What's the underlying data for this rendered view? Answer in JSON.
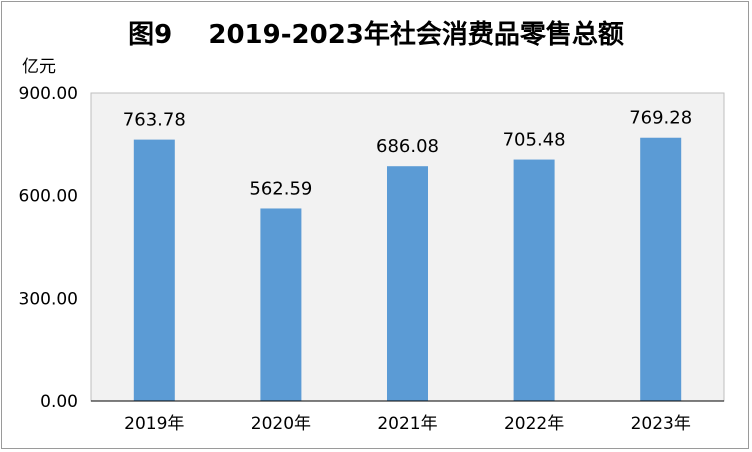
{
  "chart_data": {
    "type": "bar",
    "title": "图9    2019-2023年社会消费品零售总额",
    "ylabel": "亿元",
    "xlabel": "",
    "categories": [
      "2019年",
      "2020年",
      "2021年",
      "2022年",
      "2023年"
    ],
    "values": [
      763.78,
      562.59,
      686.08,
      705.48,
      769.28
    ],
    "data_labels": [
      "763.78",
      "562.59",
      "686.08",
      "705.48",
      "769.28"
    ],
    "ylim": [
      0,
      900
    ],
    "yticks": [
      0,
      300,
      600,
      900
    ],
    "ytick_labels": [
      "0.00",
      "300.00",
      "600.00",
      "900.00"
    ],
    "grid": false,
    "legend": "none",
    "bar_color": "#5b9bd5",
    "plot_background": "#f2f2f2"
  }
}
